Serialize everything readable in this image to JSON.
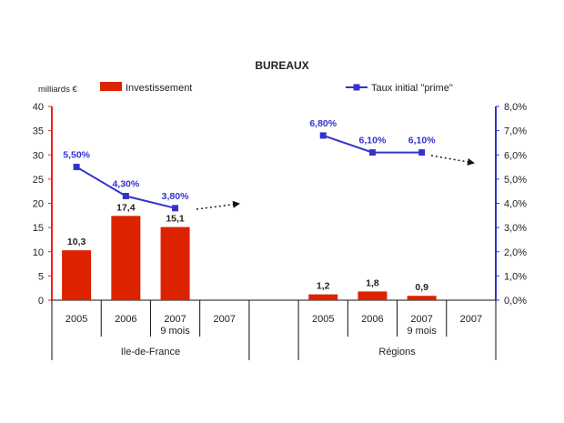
{
  "chart_data": {
    "type": "bar",
    "title": "BUREAUX",
    "left_axis": {
      "unit_label": "milliards €",
      "ylim": [
        0,
        40
      ],
      "ticks": [
        "0",
        "5",
        "10",
        "15",
        "20",
        "25",
        "30",
        "35",
        "40"
      ],
      "color": "#ee2222"
    },
    "right_axis": {
      "ylim": [
        0,
        8
      ],
      "ticks": [
        "0,0%",
        "1,0%",
        "2,0%",
        "3,0%",
        "4,0%",
        "5,0%",
        "6,0%",
        "7,0%",
        "8,0%"
      ],
      "color": "#3333cc"
    },
    "categories": [
      {
        "label": "2005",
        "sublabel": "",
        "group": 0
      },
      {
        "label": "2006",
        "sublabel": "",
        "group": 0
      },
      {
        "label": "2007",
        "sublabel": "9 mois",
        "group": 0
      },
      {
        "label": "2007",
        "sublabel": "",
        "group": 0
      },
      {
        "label": "2005",
        "sublabel": "",
        "group": 1
      },
      {
        "label": "2006",
        "sublabel": "",
        "group": 1
      },
      {
        "label": "2007",
        "sublabel": "9 mois",
        "group": 1
      },
      {
        "label": "2007",
        "sublabel": "",
        "group": 1
      }
    ],
    "groups": [
      "Ile-de-France",
      "Régions"
    ],
    "series": [
      {
        "name": "Investissement",
        "kind": "bar",
        "axis": "left",
        "color": "#dd2200",
        "values": [
          10.3,
          17.4,
          15.1,
          null,
          1.2,
          1.8,
          0.9,
          null
        ],
        "labels": [
          "10,3",
          "17,4",
          "15,1",
          "",
          "1,2",
          "1,8",
          "0,9",
          ""
        ]
      },
      {
        "name": "Taux initial \"prime\"",
        "kind": "line",
        "axis": "right",
        "color": "#3333cc",
        "values": [
          5.5,
          4.3,
          3.8,
          null,
          6.8,
          6.1,
          6.1,
          null
        ],
        "labels": [
          "5,50%",
          "4,30%",
          "3,80%",
          "",
          "6,80%",
          "6,10%",
          "6,10%",
          ""
        ]
      }
    ],
    "legend": "top",
    "grid": false
  }
}
